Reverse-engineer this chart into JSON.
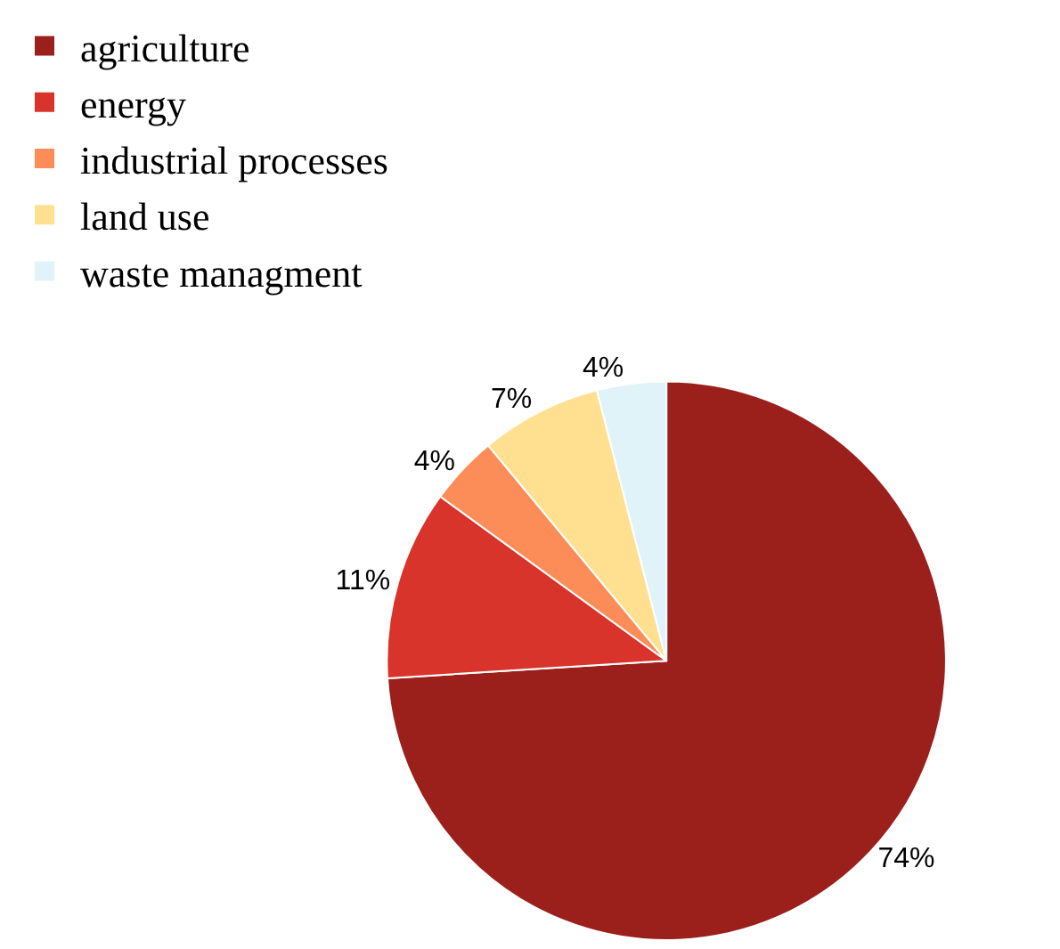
{
  "chart_data": {
    "type": "pie",
    "categories": [
      "agriculture",
      "energy",
      "industrial processes",
      "land use",
      "waste managment"
    ],
    "values": [
      74,
      11,
      4,
      7,
      4
    ],
    "colors": [
      "#9b201c",
      "#d9342b",
      "#fc8d59",
      "#fee090",
      "#e0f3f8"
    ],
    "value_labels": [
      "74%",
      "11%",
      "4%",
      "7%",
      "4%"
    ],
    "legend": "top left"
  }
}
